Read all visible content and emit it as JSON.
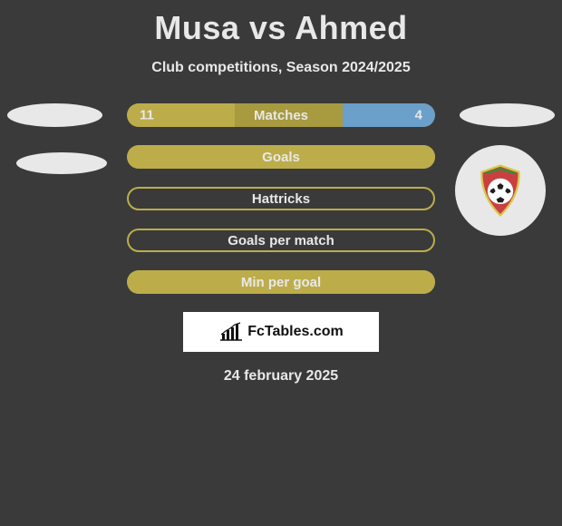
{
  "colors": {
    "background": "#3a3a3a",
    "text": "#e8e8e8",
    "bar_base": "#a89a3f",
    "bar_left_fill": "#bcad4a",
    "bar_right_fill": "#6aa0c9",
    "bar_outline": "#bcad4a",
    "ellipse": "#e8e8e8",
    "logo_bg": "#ffffff",
    "logo_text": "#111111",
    "badge_red": "#c94040",
    "badge_green": "#3a8a3a",
    "badge_yellow": "#d8c84a",
    "badge_white": "#ffffff",
    "badge_black": "#1e1e1e"
  },
  "title": "Musa vs Ahmed",
  "subtitle": "Club competitions, Season 2024/2025",
  "bars": [
    {
      "label": "Matches",
      "left_value": "11",
      "right_value": "4",
      "left_fill_pct": 35,
      "right_fill_pct": 30,
      "outline": false,
      "show_values": true
    },
    {
      "label": "Goals",
      "left_fill_pct": 100,
      "right_fill_pct": 0,
      "outline": false,
      "show_values": false
    },
    {
      "label": "Hattricks",
      "outline": true,
      "show_values": false
    },
    {
      "label": "Goals per match",
      "outline": true,
      "show_values": false
    },
    {
      "label": "Min per goal",
      "left_fill_pct": 100,
      "right_fill_pct": 0,
      "outline": false,
      "show_values": false
    }
  ],
  "logo_text": "FcTables.com",
  "date": "24 february 2025"
}
